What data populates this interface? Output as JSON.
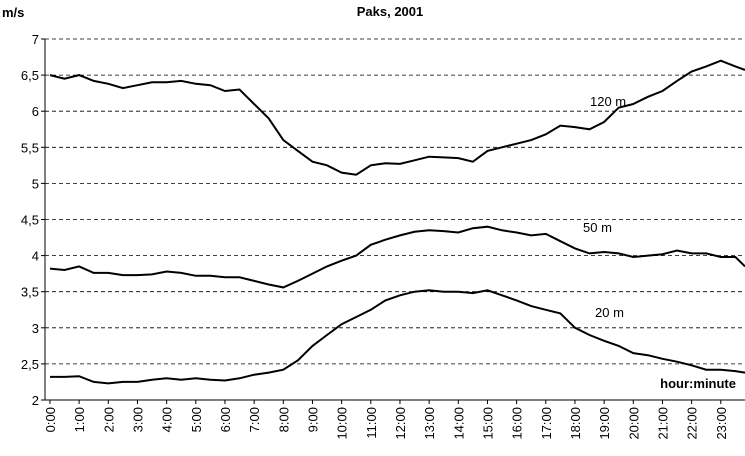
{
  "chart_data": {
    "type": "line",
    "title": "Paks, 2001",
    "y_label": "m/s",
    "x_label": "hour:minute",
    "x": [
      0,
      0.5,
      1,
      1.5,
      2,
      2.5,
      3,
      3.5,
      4,
      4.5,
      5,
      5.5,
      6,
      6.5,
      7,
      7.5,
      8,
      8.5,
      9,
      9.5,
      10,
      10.5,
      11,
      11.5,
      12,
      12.5,
      13,
      13.5,
      14,
      14.5,
      15,
      15.5,
      16,
      16.5,
      17,
      17.5,
      18,
      18.5,
      19,
      19.5,
      20,
      20.5,
      21,
      21.5,
      22,
      22.5,
      23,
      23.5,
      23.83
    ],
    "series": [
      {
        "name": "120 m",
        "color": "#000000",
        "values": [
          6.5,
          6.45,
          6.5,
          6.42,
          6.38,
          6.32,
          6.36,
          6.4,
          6.4,
          6.42,
          6.38,
          6.36,
          6.28,
          6.3,
          6.1,
          5.9,
          5.6,
          5.45,
          5.3,
          5.25,
          5.15,
          5.12,
          5.25,
          5.28,
          5.27,
          5.32,
          5.37,
          5.36,
          5.35,
          5.3,
          5.45,
          5.5,
          5.55,
          5.6,
          5.68,
          5.8,
          5.78,
          5.75,
          5.85,
          6.05,
          6.1,
          6.2,
          6.28,
          6.42,
          6.55,
          6.62,
          6.7,
          6.62,
          6.57
        ]
      },
      {
        "name": "50 m",
        "color": "#000000",
        "values": [
          3.82,
          3.8,
          3.85,
          3.76,
          3.76,
          3.73,
          3.73,
          3.74,
          3.78,
          3.76,
          3.72,
          3.72,
          3.7,
          3.7,
          3.65,
          3.6,
          3.56,
          3.65,
          3.75,
          3.85,
          3.93,
          4.0,
          4.15,
          4.22,
          4.28,
          4.33,
          4.35,
          4.34,
          4.32,
          4.38,
          4.4,
          4.35,
          4.32,
          4.28,
          4.3,
          4.2,
          4.1,
          4.03,
          4.05,
          4.03,
          3.98,
          4.0,
          4.02,
          4.07,
          4.03,
          4.03,
          3.98,
          3.98,
          3.85
        ]
      },
      {
        "name": "20 m",
        "color": "#000000",
        "values": [
          2.32,
          2.32,
          2.33,
          2.25,
          2.23,
          2.25,
          2.25,
          2.28,
          2.3,
          2.28,
          2.3,
          2.28,
          2.27,
          2.3,
          2.35,
          2.38,
          2.42,
          2.55,
          2.75,
          2.9,
          3.05,
          3.15,
          3.25,
          3.38,
          3.45,
          3.5,
          3.52,
          3.5,
          3.5,
          3.48,
          3.52,
          3.45,
          3.38,
          3.3,
          3.25,
          3.2,
          3.0,
          2.9,
          2.82,
          2.75,
          2.65,
          2.62,
          2.57,
          2.53,
          2.48,
          2.42,
          2.42,
          2.4,
          2.38
        ]
      }
    ],
    "xlim": [
      -0.17,
      23.83
    ],
    "xticks": [
      {
        "value": 0,
        "label": "0:00"
      },
      {
        "value": 1,
        "label": "1:00"
      },
      {
        "value": 2,
        "label": "2:00"
      },
      {
        "value": 3,
        "label": "3:00"
      },
      {
        "value": 4,
        "label": "4:00"
      },
      {
        "value": 5,
        "label": "5:00"
      },
      {
        "value": 6,
        "label": "6:00"
      },
      {
        "value": 7,
        "label": "7:00"
      },
      {
        "value": 8,
        "label": "8:00"
      },
      {
        "value": 9,
        "label": "9:00"
      },
      {
        "value": 10,
        "label": "10:00"
      },
      {
        "value": 11,
        "label": "11:00"
      },
      {
        "value": 12,
        "label": "12:00"
      },
      {
        "value": 13,
        "label": "13:00"
      },
      {
        "value": 14,
        "label": "14:00"
      },
      {
        "value": 15,
        "label": "15:00"
      },
      {
        "value": 16,
        "label": "16:00"
      },
      {
        "value": 17,
        "label": "17:00"
      },
      {
        "value": 18,
        "label": "18:00"
      },
      {
        "value": 19,
        "label": "19:00"
      },
      {
        "value": 20,
        "label": "20:00"
      },
      {
        "value": 21,
        "label": "21:00"
      },
      {
        "value": 22,
        "label": "22:00"
      },
      {
        "value": 23,
        "label": "23:00"
      }
    ],
    "ylim": [
      2,
      7
    ],
    "yticks": [
      2,
      {
        "value": 2.5,
        "label": "2,5"
      },
      3,
      {
        "value": 3.5,
        "label": "3,5"
      },
      4,
      {
        "value": 4.5,
        "label": "4,5"
      },
      5,
      {
        "value": 5.5,
        "label": "5,5"
      },
      6,
      {
        "value": 6.5,
        "label": "6,5"
      },
      7
    ],
    "grid": true
  }
}
